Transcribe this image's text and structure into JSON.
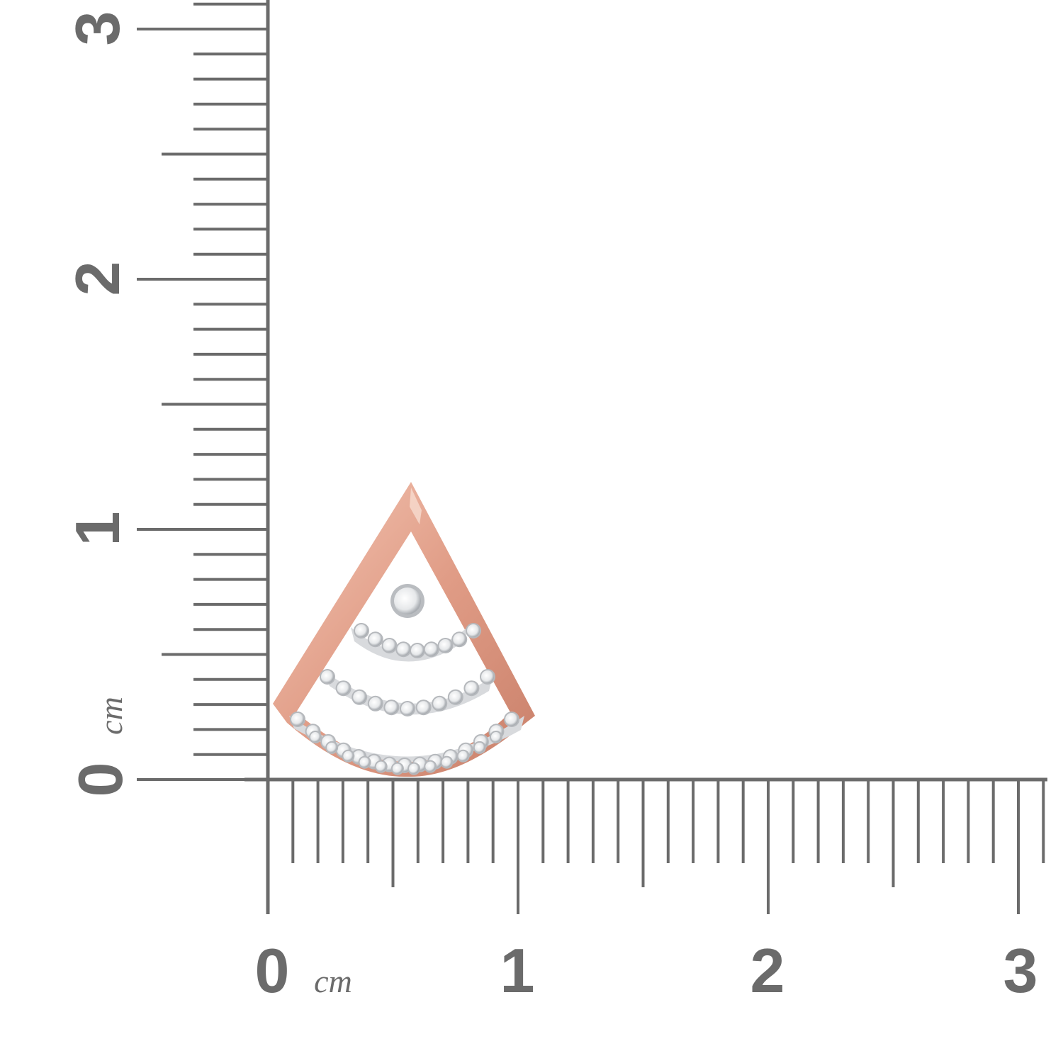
{
  "ruler": {
    "color": "#6b6b6b",
    "unit_label": "cm",
    "x_labels": [
      "0",
      "1",
      "2",
      "3"
    ],
    "y_labels": [
      "0",
      "1",
      "2",
      "3"
    ],
    "minor_per_unit": 10
  },
  "pendant": {
    "metal_color": "#d9927c",
    "metal_highlight": "#f3c7b6",
    "stone_color": "#eef0f2",
    "setting_color": "#c9ccd0",
    "rows": [
      {
        "stones": 1
      },
      {
        "stones": 9
      },
      {
        "stones": 11
      },
      {
        "stones": 15
      }
    ]
  }
}
